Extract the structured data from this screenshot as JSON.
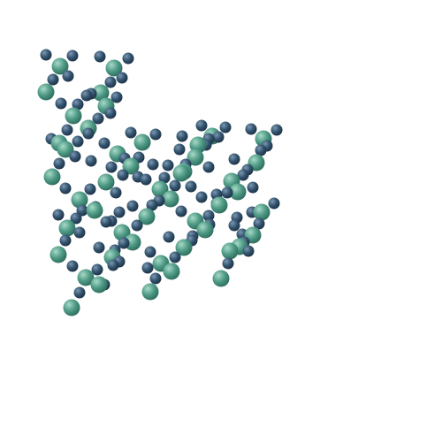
{
  "structure": {
    "colors": {
      "background": "#ffffff",
      "small_atom": "#34546f",
      "small_atom_highlight": "#7d98b1",
      "small_atom_shadow": "#1d3347",
      "large_atom": "#4f9a86",
      "large_atom_highlight": "#a7d9c7",
      "large_atom_shadow": "#2f6f5f"
    },
    "atom_types": [
      "small-blue-atom",
      "large-green-atom"
    ]
  }
}
